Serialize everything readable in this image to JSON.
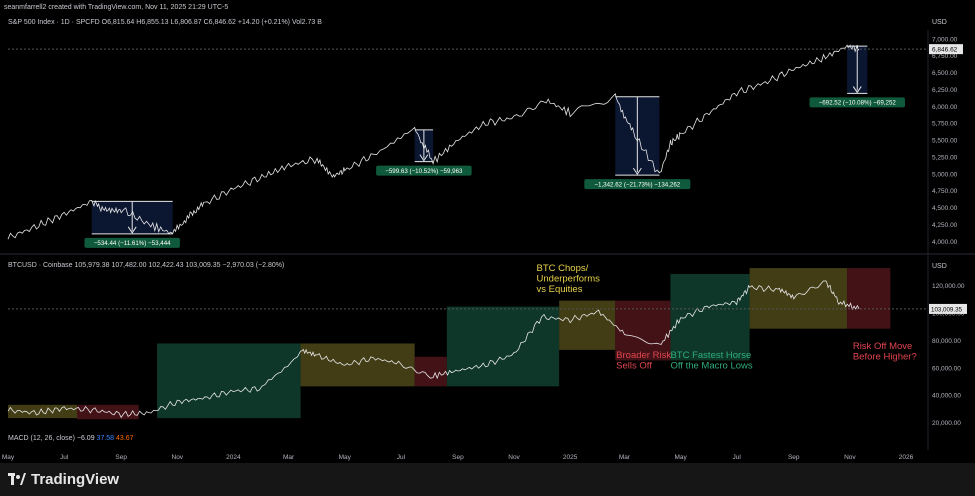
{
  "header": {
    "credit": "seanmfarrell2 created with TradingView.com, Nov 11, 2025 21:29 UTC-5",
    "spx_info": "S&P 500 Index · 1D · SPCFD  O6,815.64  H6,855.13  L6,806.87  C6,846.62  +14.20 (+0.21%)  Vol2.73 B",
    "btc_info": "BTCUSD · Coinbase  105,979.38  107,482.00  102,422.43  103,009.35  −2,970.03 (−2.80%)",
    "macd_info": "MACD (12, 26, close)",
    "macd_values": [
      "−6.09",
      "37.58",
      "43.67"
    ],
    "currency": "USD"
  },
  "brand": {
    "name": "TradingView"
  },
  "colors": {
    "up_line": "#e6e6e6",
    "navy_box": "#0d1a3a",
    "green_box": "#0f3d2e",
    "olive_box": "#4a4418",
    "maroon_box": "#4a1418",
    "label_green": "#0f5a3c"
  },
  "chart_data": [
    {
      "type": "line",
      "title": "S&P 500 Index · 1D · SPCFD",
      "ylim": [
        3900,
        7100
      ],
      "yticks": [
        "4,000.00",
        "4,250.00",
        "4,500.00",
        "4,750.00",
        "5,000.00",
        "5,250.00",
        "5,500.00",
        "5,750.00",
        "6,000.00",
        "6,250.00",
        "6,500.00",
        "6,750.00",
        "7,000.00"
      ],
      "last_price": "6,846.62",
      "x": [
        "2023-05-01",
        "2023-06-01",
        "2023-07-01",
        "2023-07-31",
        "2023-08-15",
        "2023-09-01",
        "2023-10-01",
        "2023-10-27",
        "2023-11-15",
        "2023-12-01",
        "2024-01-01",
        "2024-02-01",
        "2024-03-01",
        "2024-04-01",
        "2024-04-19",
        "2024-05-01",
        "2024-06-01",
        "2024-07-16",
        "2024-08-05",
        "2024-09-01",
        "2024-10-01",
        "2024-11-01",
        "2024-12-06",
        "2025-01-01",
        "2025-02-19",
        "2025-03-10",
        "2025-04-08",
        "2025-04-20",
        "2025-05-01",
        "2025-06-01",
        "2025-07-01",
        "2025-08-01",
        "2025-09-01",
        "2025-10-01",
        "2025-10-29",
        "2025-11-11"
      ],
      "values": [
        4050,
        4220,
        4400,
        4590,
        4450,
        4480,
        4250,
        4110,
        4400,
        4560,
        4780,
        4950,
        5120,
        5220,
        4970,
        5050,
        5280,
        5650,
        5180,
        5500,
        5750,
        5830,
        6090,
        5900,
        6140,
        5620,
        4980,
        5450,
        5580,
        5900,
        6200,
        6350,
        6550,
        6700,
        6890,
        6846
      ],
      "drawdowns": [
        {
          "start": "2023-07-31",
          "end": "2023-10-27",
          "label": "−534.44 (−11.61%) −53,444"
        },
        {
          "start": "2024-07-16",
          "end": "2024-08-05",
          "label": "−599.63 (−10.52%) −59,963"
        },
        {
          "start": "2025-02-19",
          "end": "2025-04-08",
          "label": "−1,342.62 (−21.73%) −134,262"
        },
        {
          "start": "2025-10-29",
          "end": "2025-11-20",
          "label": "−692.52 (−10.08%) −69,252"
        }
      ]
    },
    {
      "type": "line",
      "title": "BTCUSD · Coinbase",
      "ylim": [
        16000,
        130000
      ],
      "yticks": [
        "20,000.00",
        "40,000.00",
        "60,000.00",
        "80,000.00",
        "100,000.00",
        "120,000.00"
      ],
      "last_price": "103,009.35",
      "x": [
        "2023-05-01",
        "2023-06-01",
        "2023-07-01",
        "2023-08-01",
        "2023-09-01",
        "2023-10-01",
        "2023-11-01",
        "2023-12-01",
        "2024-01-01",
        "2024-02-01",
        "2024-03-14",
        "2024-04-01",
        "2024-05-01",
        "2024-06-01",
        "2024-07-01",
        "2024-08-05",
        "2024-09-01",
        "2024-10-01",
        "2024-11-01",
        "2024-12-01",
        "2025-01-01",
        "2025-02-01",
        "2025-03-01",
        "2025-04-08",
        "2025-05-01",
        "2025-06-01",
        "2025-07-01",
        "2025-07-15",
        "2025-08-15",
        "2025-09-01",
        "2025-10-06",
        "2025-10-20",
        "2025-11-11"
      ],
      "values": [
        29000,
        27000,
        30500,
        29200,
        26000,
        27000,
        35000,
        38000,
        43000,
        45000,
        72000,
        69000,
        62000,
        67000,
        63000,
        54000,
        58000,
        62000,
        70000,
        97000,
        95000,
        101000,
        85000,
        76000,
        96000,
        105000,
        108000,
        119000,
        117000,
        111000,
        123000,
        108000,
        103000
      ],
      "regions": [
        {
          "start": "2023-05-01",
          "end": "2023-07-15",
          "color": "olive"
        },
        {
          "start": "2023-07-15",
          "end": "2023-09-20",
          "color": "maroon"
        },
        {
          "start": "2023-10-10",
          "end": "2024-03-14",
          "color": "green"
        },
        {
          "start": "2024-03-14",
          "end": "2024-07-16",
          "color": "olive"
        },
        {
          "start": "2024-07-16",
          "end": "2024-08-20",
          "color": "maroon"
        },
        {
          "start": "2024-08-20",
          "end": "2024-12-20",
          "color": "green"
        },
        {
          "start": "2024-12-20",
          "end": "2025-02-19",
          "color": "olive"
        },
        {
          "start": "2025-02-19",
          "end": "2025-04-20",
          "color": "maroon"
        },
        {
          "start": "2025-04-20",
          "end": "2025-07-15",
          "color": "green"
        },
        {
          "start": "2025-07-15",
          "end": "2025-10-29",
          "color": "olive"
        },
        {
          "start": "2025-10-29",
          "end": "2025-12-15",
          "color": "maroon"
        }
      ],
      "annotations": [
        {
          "lines": [
            "BTC Chops/",
            "Underperforms",
            "vs Equities"
          ],
          "color": "#e8d24a",
          "date": "2024-12-15"
        },
        {
          "lines": [
            "Broader Risk",
            "Sells Off"
          ],
          "color": "#e0454f",
          "date": "2025-02-20"
        },
        {
          "lines": [
            "BTC Fastest Horse",
            "Off the Macro Lows"
          ],
          "color": "#2fae7d",
          "date": "2025-04-20"
        },
        {
          "lines": [
            "Risk Off Move",
            "Before Higher?"
          ],
          "color": "#e0454f",
          "date": "2025-10-20"
        }
      ]
    }
  ],
  "x_axis": {
    "ticks": [
      {
        "label": "May",
        "date": "2023-05-01"
      },
      {
        "label": "Jul",
        "date": "2023-07-01"
      },
      {
        "label": "Sep",
        "date": "2023-09-01"
      },
      {
        "label": "Nov",
        "date": "2023-11-01"
      },
      {
        "label": "2024",
        "date": "2024-01-01"
      },
      {
        "label": "Mar",
        "date": "2024-03-01"
      },
      {
        "label": "May",
        "date": "2024-05-01"
      },
      {
        "label": "Jul",
        "date": "2024-07-01"
      },
      {
        "label": "Sep",
        "date": "2024-09-01"
      },
      {
        "label": "Nov",
        "date": "2024-11-01"
      },
      {
        "label": "2025",
        "date": "2025-01-01"
      },
      {
        "label": "Mar",
        "date": "2025-03-01"
      },
      {
        "label": "May",
        "date": "2025-05-01"
      },
      {
        "label": "Jul",
        "date": "2025-07-01"
      },
      {
        "label": "Sep",
        "date": "2025-09-01"
      },
      {
        "label": "Nov",
        "date": "2025-11-01"
      },
      {
        "label": "2026",
        "date": "2026-01-01"
      }
    ]
  }
}
